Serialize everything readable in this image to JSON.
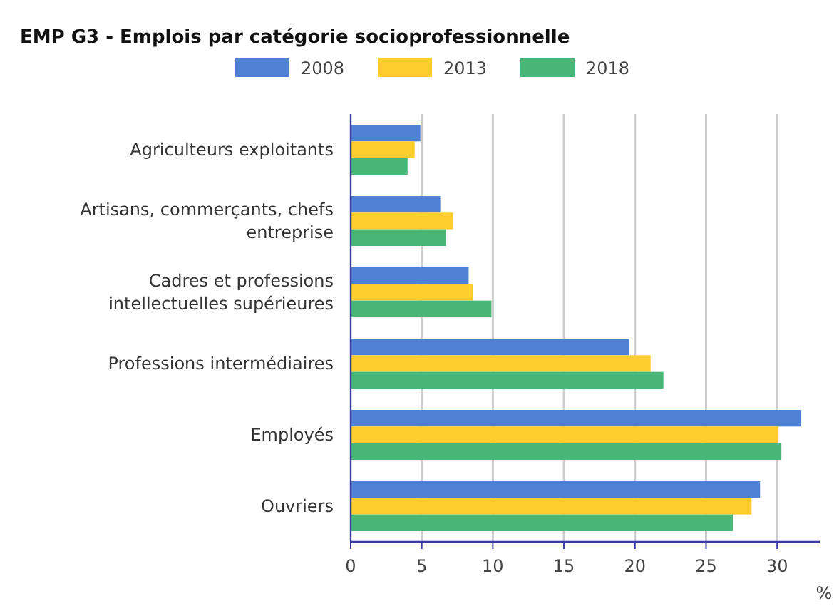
{
  "chart_data": {
    "type": "bar",
    "orientation": "horizontal",
    "title": "EMP G3 - Emplois par catégorie socioprofessionnelle",
    "xlabel": "%",
    "categories": [
      "Agriculteurs exploitants",
      "Artisans, commerçants, chefs entreprise",
      "Cadres et professions intellectuelles supérieures",
      "Professions intermédiaires",
      "Employés",
      "Ouvriers"
    ],
    "series": [
      {
        "name": "2008",
        "color": "#4e80d4",
        "values": [
          4.9,
          6.3,
          8.3,
          19.6,
          31.7,
          28.8
        ]
      },
      {
        "name": "2013",
        "color": "#fecc2f",
        "values": [
          4.5,
          7.2,
          8.6,
          21.1,
          30.1,
          28.2
        ]
      },
      {
        "name": "2018",
        "color": "#47b676",
        "values": [
          4.0,
          6.7,
          9.9,
          22.0,
          30.3,
          26.9
        ]
      }
    ],
    "xlim": [
      0,
      33
    ],
    "xticks": [
      0,
      5,
      10,
      15,
      20,
      25,
      30
    ],
    "grid": "x",
    "legend": "top"
  }
}
